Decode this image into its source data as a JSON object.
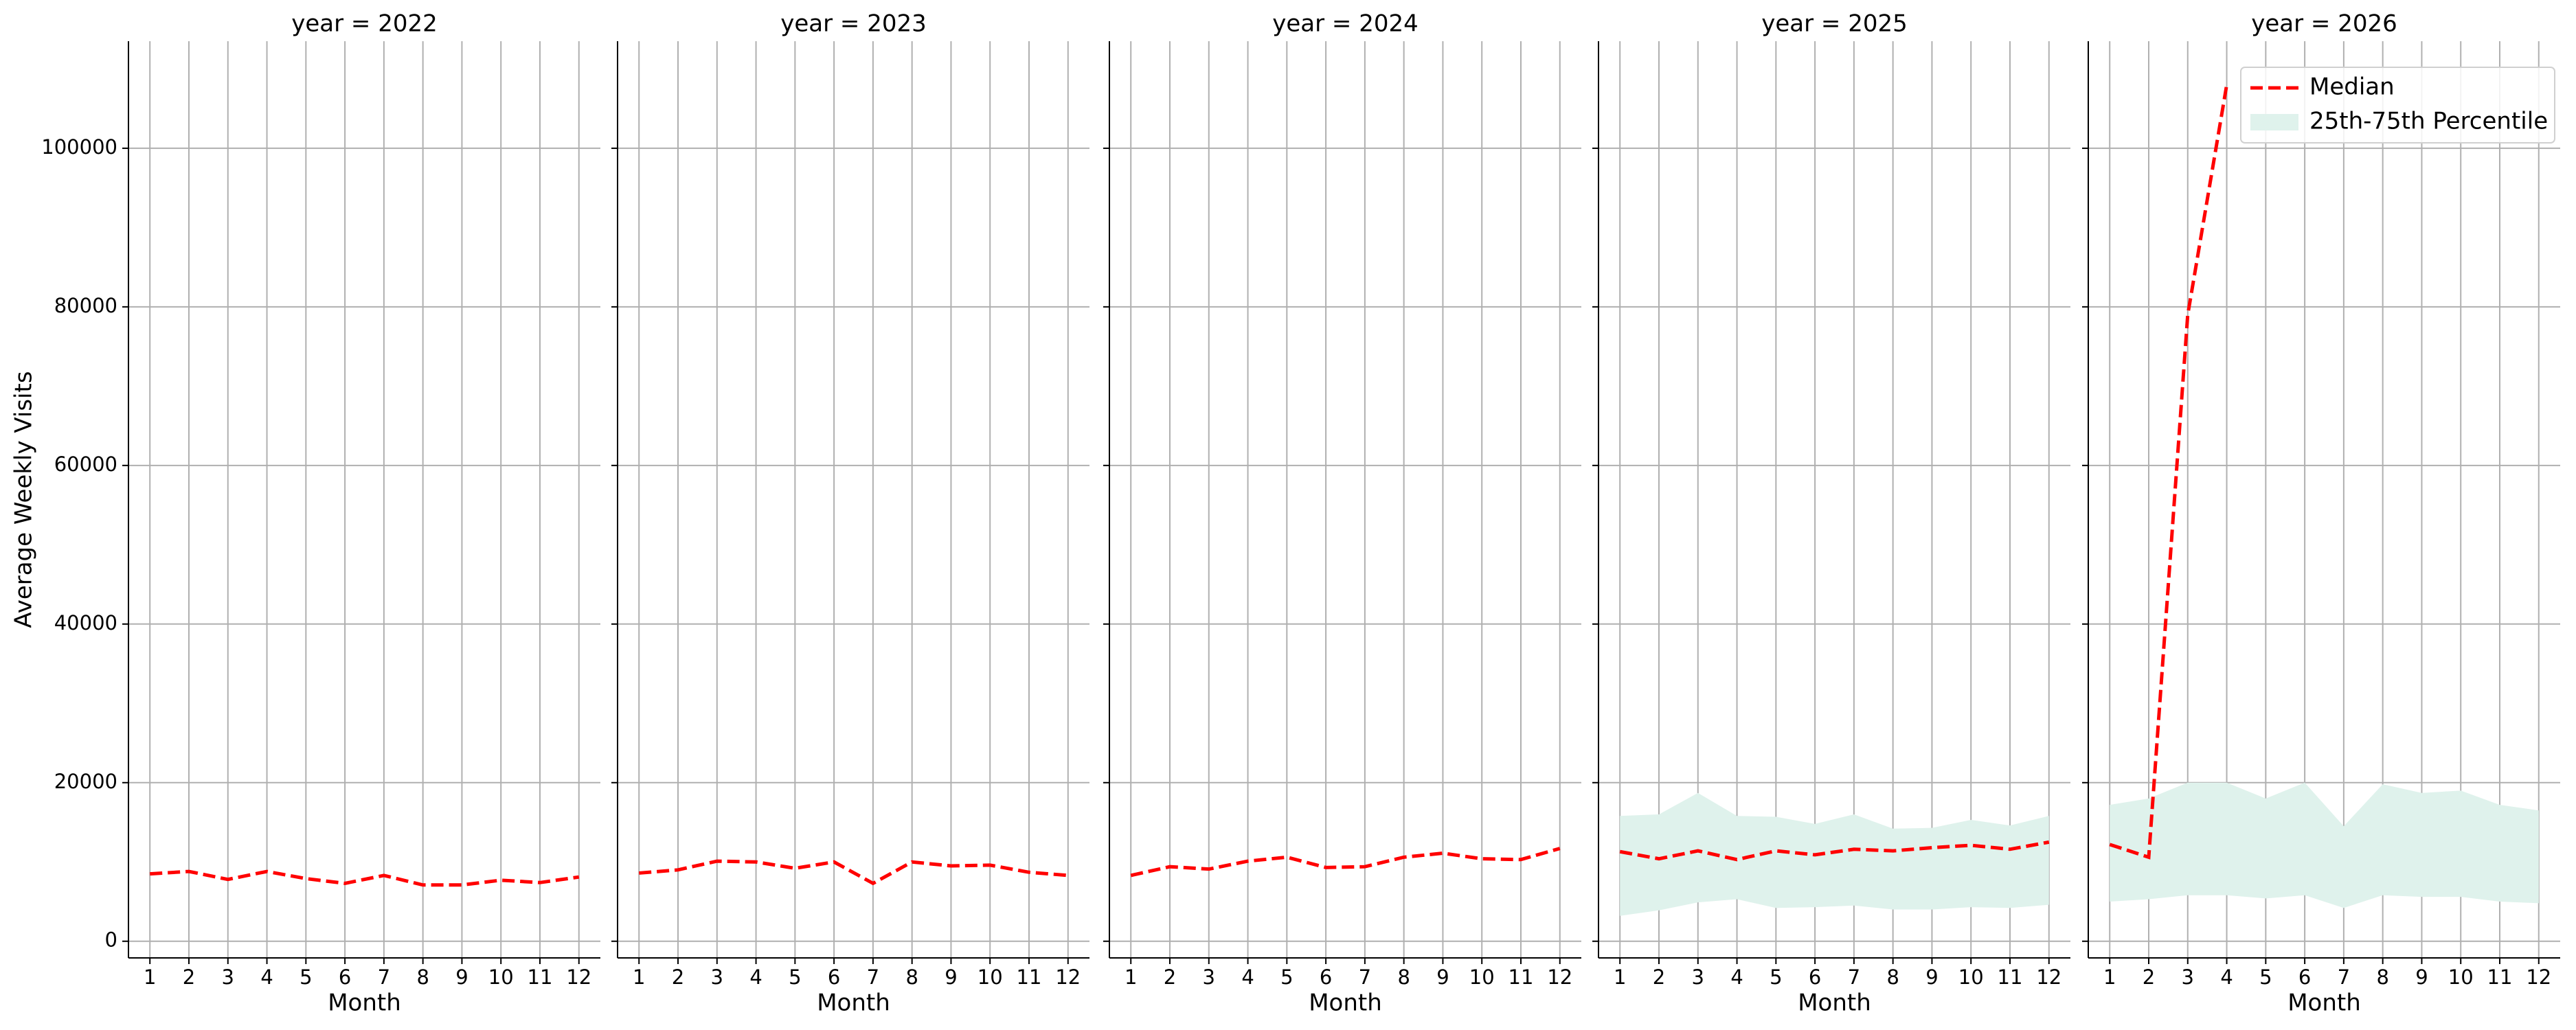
{
  "chart_data": [
    {
      "type": "line",
      "title": "year = 2022",
      "xlabel": "Month",
      "ylabel": "Average Weekly Visits",
      "x": [
        1,
        2,
        3,
        4,
        5,
        6,
        7,
        8,
        9,
        10,
        11,
        12
      ],
      "xlim": [
        0.45,
        12.55
      ],
      "xticks": [
        1,
        2,
        3,
        4,
        5,
        6,
        7,
        8,
        9,
        10,
        11,
        12
      ],
      "ylim": [
        -2100,
        113500
      ],
      "yticks": [
        0,
        20000,
        40000,
        60000,
        80000,
        100000
      ],
      "grid": true,
      "series": [
        {
          "color": "#ff0000",
          "values": [
            8500,
            8800,
            7800,
            8800,
            7900,
            7300,
            8300,
            7100,
            7100,
            7700,
            7400,
            8100
          ]
        }
      ]
    },
    {
      "type": "line",
      "title": "year = 2023",
      "xlabel": "Month",
      "x": [
        1,
        2,
        3,
        4,
        5,
        6,
        7,
        8,
        9,
        10,
        11,
        12
      ],
      "xlim": [
        0.45,
        12.55
      ],
      "xticks": [
        1,
        2,
        3,
        4,
        5,
        6,
        7,
        8,
        9,
        10,
        11,
        12
      ],
      "ylim": [
        -2100,
        113500
      ],
      "yticks": [
        0,
        20000,
        40000,
        60000,
        80000,
        100000
      ],
      "grid": true,
      "series": [
        {
          "color": "#ff0000",
          "values": [
            8600,
            9000,
            10100,
            10000,
            9200,
            10000,
            7300,
            10000,
            9500,
            9600,
            8700,
            8300
          ]
        }
      ]
    },
    {
      "type": "line",
      "title": "year = 2024",
      "xlabel": "Month",
      "x": [
        1,
        2,
        3,
        4,
        5,
        6,
        7,
        8,
        9,
        10,
        11,
        12
      ],
      "xlim": [
        0.45,
        12.55
      ],
      "xticks": [
        1,
        2,
        3,
        4,
        5,
        6,
        7,
        8,
        9,
        10,
        11,
        12
      ],
      "ylim": [
        -2100,
        113500
      ],
      "yticks": [
        0,
        20000,
        40000,
        60000,
        80000,
        100000
      ],
      "grid": true,
      "series": [
        {
          "color": "#ff0000",
          "values": [
            8300,
            9400,
            9100,
            10100,
            10600,
            9300,
            9400,
            10600,
            11100,
            10400,
            10300,
            11700
          ]
        }
      ]
    },
    {
      "type": "line",
      "title": "year = 2025",
      "xlabel": "Month",
      "x": [
        1,
        2,
        3,
        4,
        5,
        6,
        7,
        8,
        9,
        10,
        11,
        12
      ],
      "xlim": [
        0.45,
        12.55
      ],
      "xticks": [
        1,
        2,
        3,
        4,
        5,
        6,
        7,
        8,
        9,
        10,
        11,
        12
      ],
      "ylim": [
        -2100,
        113500
      ],
      "yticks": [
        0,
        20000,
        40000,
        60000,
        80000,
        100000
      ],
      "grid": true,
      "band": {
        "color": "#dff2ec",
        "low": [
          3200,
          3900,
          4900,
          5300,
          4200,
          4300,
          4500,
          4000,
          4000,
          4300,
          4200,
          4600
        ],
        "high": [
          15800,
          16000,
          18700,
          15800,
          15700,
          14800,
          16000,
          14200,
          14300,
          15300,
          14600,
          15800
        ]
      },
      "series": [
        {
          "color": "#ff0000",
          "values": [
            11300,
            10400,
            11400,
            10300,
            11400,
            10900,
            11600,
            11400,
            11800,
            12100,
            11600,
            12500
          ]
        }
      ]
    },
    {
      "type": "line",
      "title": "year = 2026",
      "xlabel": "Month",
      "x": [
        1,
        2,
        3,
        4,
        5,
        6,
        7,
        8,
        9,
        10,
        11,
        12
      ],
      "xlim": [
        0.45,
        12.55
      ],
      "xticks": [
        1,
        2,
        3,
        4,
        5,
        6,
        7,
        8,
        9,
        10,
        11,
        12
      ],
      "ylim": [
        -2100,
        113500
      ],
      "yticks": [
        0,
        20000,
        40000,
        60000,
        80000,
        100000
      ],
      "grid": true,
      "legend": "upper right",
      "band": {
        "name": "25th-75th Percentile",
        "color": "#dff2ec",
        "low": [
          5000,
          5300,
          5800,
          5800,
          5400,
          5800,
          4200,
          5800,
          5600,
          5600,
          5000,
          4800
        ],
        "high": [
          17200,
          18000,
          20000,
          20000,
          18000,
          20000,
          14500,
          19800,
          18700,
          19000,
          17200,
          16500
        ]
      },
      "series": [
        {
          "name": "Median",
          "color": "#ff0000",
          "values": [
            12200,
            10600,
            79000,
            108000,
            null,
            null,
            null,
            null,
            null,
            null,
            null,
            null
          ]
        }
      ]
    }
  ]
}
